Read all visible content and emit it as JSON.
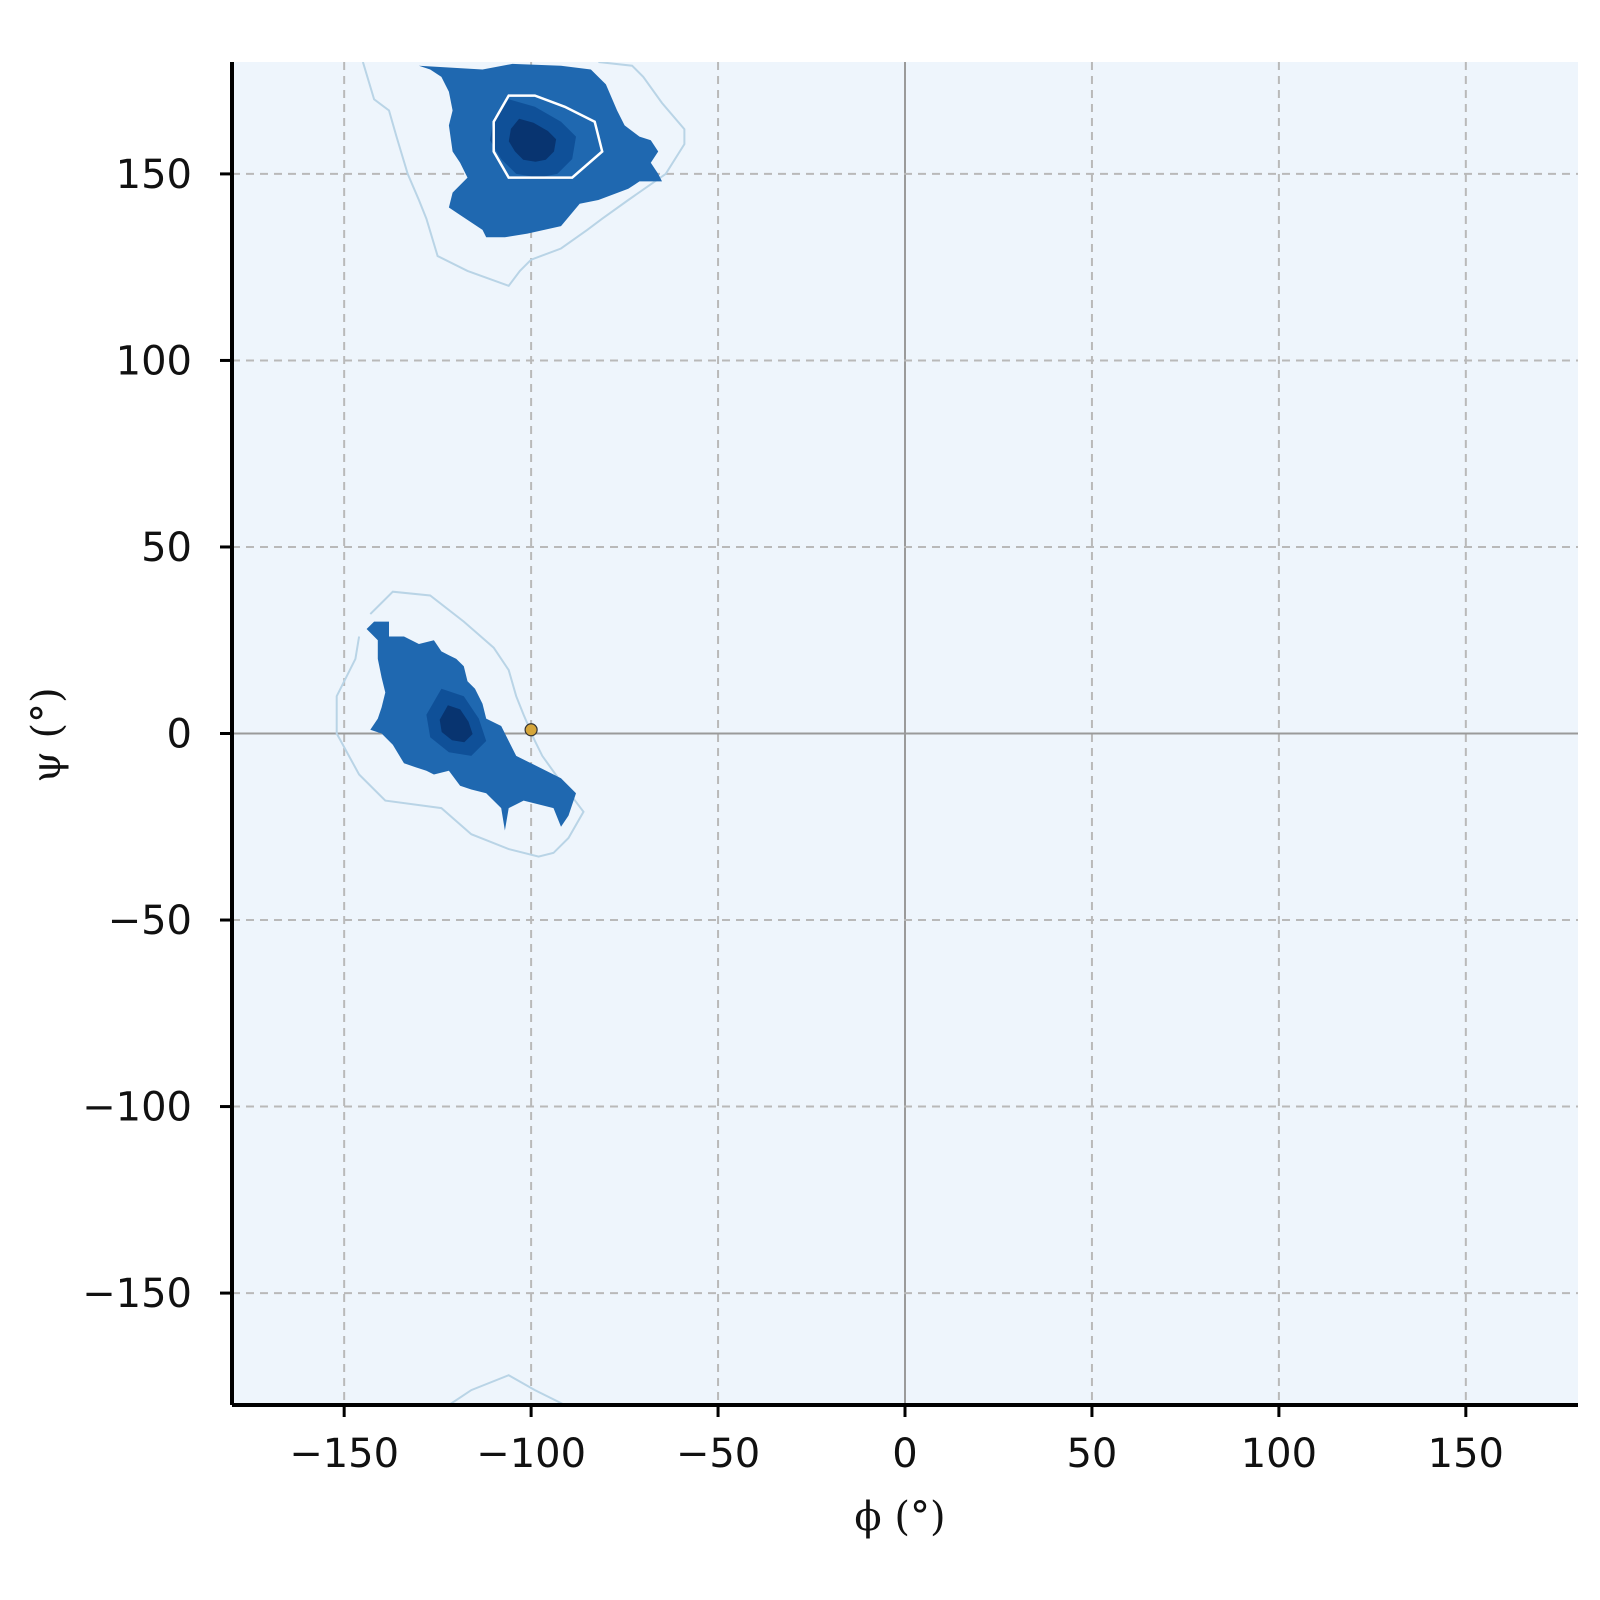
{
  "chart_data": {
    "type": "heatmap",
    "title": "",
    "xlabel": "ϕ (°)",
    "ylabel": "ψ (°)",
    "xlim": [
      -180,
      180
    ],
    "ylim": [
      -180,
      180
    ],
    "xticks": [
      -150,
      -100,
      -50,
      0,
      50,
      100,
      150
    ],
    "yticks": [
      -150,
      -100,
      -50,
      0,
      50,
      100,
      150
    ],
    "xtick_labels": [
      "−150",
      "−100",
      "−50",
      "0",
      "50",
      "100",
      "150"
    ],
    "ytick_labels": [
      "−150",
      "−100",
      "−50",
      "0",
      "50",
      "100",
      "150"
    ],
    "grid": true,
    "grid_style": "dashed",
    "reference_lines": {
      "x": 0,
      "y": 0
    },
    "colormap": "Blues",
    "background_color": "#eef5fc",
    "density_colors": [
      "#1f68b0",
      "#0d4e96",
      "#083470"
    ],
    "outer_contour_color": "#b9d4e6",
    "inner_contour_color": "#ffffff",
    "regions": [
      {
        "region": "beta",
        "filled": [
          [
            -130,
            179
          ],
          [
            -113,
            178
          ],
          [
            -105,
            179.5
          ],
          [
            -92,
            179
          ],
          [
            -84,
            178
          ],
          [
            -80,
            174
          ],
          [
            -77,
            167
          ],
          [
            -75,
            163
          ],
          [
            -71,
            160
          ],
          [
            -68,
            159
          ],
          [
            -66,
            156
          ],
          [
            -68,
            153
          ],
          [
            -66,
            150
          ],
          [
            -65,
            148
          ],
          [
            -71,
            148
          ],
          [
            -74,
            146
          ],
          [
            -82,
            143
          ],
          [
            -87,
            142
          ],
          [
            -92,
            136
          ],
          [
            -101,
            134
          ],
          [
            -107,
            133
          ],
          [
            -112,
            133
          ],
          [
            -113,
            135
          ],
          [
            -119,
            139
          ],
          [
            -122,
            141
          ],
          [
            -121,
            145
          ],
          [
            -117,
            149
          ],
          [
            -119,
            153
          ],
          [
            -121,
            156
          ],
          [
            -122,
            163
          ],
          [
            -121,
            167
          ],
          [
            -122,
            172
          ],
          [
            -124,
            176
          ],
          [
            -127,
            178
          ]
        ],
        "core": [
          [
            -106,
            170
          ],
          [
            -99,
            168
          ],
          [
            -92,
            164
          ],
          [
            -88,
            160
          ],
          [
            -89,
            154
          ],
          [
            -93,
            150
          ],
          [
            -98,
            149
          ],
          [
            -104,
            150
          ],
          [
            -108,
            154
          ],
          [
            -111,
            159
          ],
          [
            -110,
            165
          ]
        ],
        "outer_contour": [
          [
            -145,
            180
          ],
          [
            -142,
            170
          ],
          [
            -138,
            167
          ],
          [
            -136,
            160
          ],
          [
            -133,
            150
          ],
          [
            -130,
            143
          ],
          [
            -128,
            138
          ],
          [
            -125,
            128
          ],
          [
            -117,
            124
          ],
          [
            -106,
            120
          ],
          [
            -103,
            124
          ],
          [
            -100,
            127
          ],
          [
            -92,
            130
          ],
          [
            -85,
            135
          ],
          [
            -81,
            138
          ],
          [
            -74,
            143
          ],
          [
            -64,
            150
          ],
          [
            -59,
            158
          ],
          [
            -59,
            162
          ],
          [
            -65,
            169
          ],
          [
            -70,
            176
          ],
          [
            -73,
            179
          ],
          [
            -82,
            180
          ]
        ],
        "inner_contour": [
          [
            -106,
            171
          ],
          [
            -99,
            171
          ],
          [
            -91,
            168
          ],
          [
            -83,
            164
          ],
          [
            -81,
            156
          ],
          [
            -89,
            149
          ],
          [
            -102,
            149
          ],
          [
            -106,
            149
          ],
          [
            -110,
            156
          ],
          [
            -110,
            164
          ]
        ]
      },
      {
        "region": "alpha",
        "filled": [
          [
            -142,
            30
          ],
          [
            -138,
            30
          ],
          [
            -138,
            26
          ],
          [
            -134,
            26
          ],
          [
            -130,
            24
          ],
          [
            -126,
            25
          ],
          [
            -124,
            22
          ],
          [
            -122,
            21
          ],
          [
            -120,
            20
          ],
          [
            -118,
            18
          ],
          [
            -117,
            14
          ],
          [
            -115,
            12
          ],
          [
            -113,
            8
          ],
          [
            -112,
            4
          ],
          [
            -108,
            2
          ],
          [
            -106,
            -2
          ],
          [
            -104,
            -6
          ],
          [
            -100,
            -8
          ],
          [
            -92,
            -12
          ],
          [
            -88,
            -16
          ],
          [
            -90,
            -22
          ],
          [
            -92,
            -25
          ],
          [
            -94,
            -20
          ],
          [
            -98,
            -19
          ],
          [
            -102,
            -18
          ],
          [
            -104,
            -19
          ],
          [
            -106,
            -20
          ],
          [
            -107,
            -26
          ],
          [
            -108,
            -20
          ],
          [
            -112,
            -16
          ],
          [
            -116,
            -15
          ],
          [
            -119,
            -14
          ],
          [
            -122,
            -10
          ],
          [
            -126,
            -11
          ],
          [
            -128,
            -10
          ],
          [
            -131,
            -9
          ],
          [
            -134,
            -8
          ],
          [
            -137,
            -3
          ],
          [
            -140,
            0
          ],
          [
            -143,
            1
          ],
          [
            -141,
            4
          ],
          [
            -140,
            7
          ],
          [
            -139,
            11
          ],
          [
            -140,
            15
          ],
          [
            -141,
            20
          ],
          [
            -141,
            25
          ],
          [
            -144,
            28
          ]
        ],
        "core": [
          [
            -124,
            12
          ],
          [
            -118,
            10
          ],
          [
            -114,
            4
          ],
          [
            -112,
            -2
          ],
          [
            -116,
            -6
          ],
          [
            -122,
            -5
          ],
          [
            -127,
            -1
          ],
          [
            -128,
            5
          ]
        ],
        "outer_contour": [
          [
            -143,
            32
          ],
          [
            -137,
            38
          ],
          [
            -127,
            37
          ],
          [
            -118,
            30
          ],
          [
            -110,
            23
          ],
          [
            -106,
            17
          ],
          [
            -104,
            10
          ],
          [
            -102,
            5
          ],
          [
            -99,
            -2
          ],
          [
            -97,
            -6
          ],
          [
            -92,
            -13
          ],
          [
            -86,
            -21
          ],
          [
            -90,
            -28
          ],
          [
            -94,
            -32
          ],
          [
            -98,
            -33
          ],
          [
            -106,
            -31
          ],
          [
            -116,
            -27
          ],
          [
            -124,
            -20
          ],
          [
            -139,
            -18
          ],
          [
            -146,
            -11
          ],
          [
            -152,
            0
          ],
          [
            -152,
            10
          ],
          [
            -147,
            20
          ],
          [
            -146,
            26
          ]
        ],
        "inner_contour": []
      },
      {
        "region": "wrap-bottom",
        "filled": [],
        "core": [],
        "outer_contour": [
          [
            -122,
            -180
          ],
          [
            -116,
            -176
          ],
          [
            -106,
            -172
          ],
          [
            -99,
            -176
          ],
          [
            -91,
            -180
          ]
        ],
        "inner_contour": []
      }
    ],
    "series": [
      {
        "type": "scatter",
        "points": [
          {
            "x": -100,
            "y": 1
          }
        ],
        "color": "#d6a63a"
      }
    ]
  }
}
